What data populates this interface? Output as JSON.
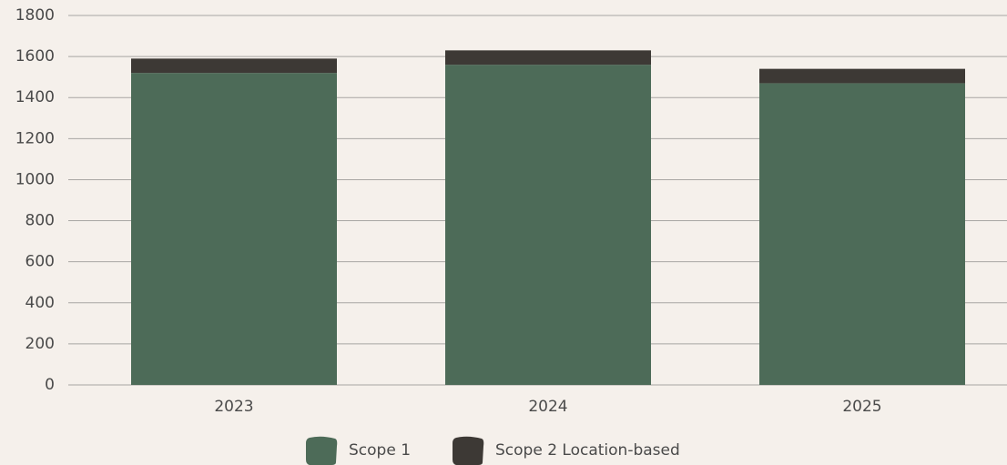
{
  "chart_data": {
    "type": "stacked_bar",
    "categories": [
      "2023",
      "2024",
      "2025"
    ],
    "series": [
      {
        "name": "Scope 1",
        "color": "#4d6b58",
        "values": [
          1520,
          1560,
          1470
        ]
      },
      {
        "name": "Scope 2 Location-based",
        "color": "#3d3935",
        "values": [
          70,
          70,
          70
        ]
      }
    ],
    "ylim": [
      0,
      1800
    ],
    "yticks": [
      0,
      200,
      400,
      600,
      800,
      1000,
      1200,
      1400,
      1600,
      1800
    ],
    "grid": true,
    "legend": "bottom"
  }
}
